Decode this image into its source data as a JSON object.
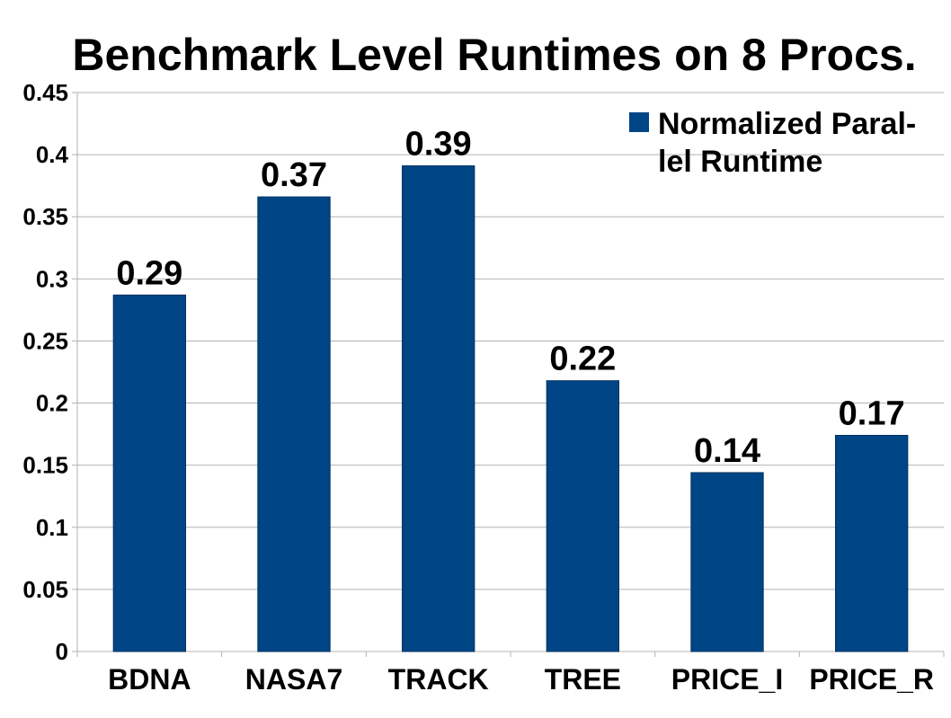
{
  "chart_data": {
    "type": "bar",
    "title": "Benchmark Level Runtimes on 8 Procs.",
    "xlabel": "",
    "ylabel": "",
    "categories": [
      "BDNA",
      "NASA7",
      "TRACK",
      "TREE",
      "PRICE_I",
      "PRICE_R"
    ],
    "series": [
      {
        "name": "Normalized Parallel Runtime",
        "values": [
          0.287,
          0.366,
          0.391,
          0.218,
          0.144,
          0.174
        ],
        "data_labels": [
          "0.29",
          "0.37",
          "0.39",
          "0.22",
          "0.14",
          "0.17"
        ],
        "color": "#004586"
      }
    ],
    "ylim": [
      0,
      0.45
    ],
    "yticks": [
      0,
      0.05,
      0.1,
      0.15,
      0.2,
      0.25,
      0.3,
      0.35,
      0.4,
      0.45
    ],
    "ytick_labels": [
      "0",
      "0.05",
      "0.1",
      "0.15",
      "0.2",
      "0.25",
      "0.3",
      "0.35",
      "0.4",
      "0.45"
    ],
    "grid": true,
    "legend": {
      "position": "top-right",
      "lines": [
        "Normalized Paral-",
        "lel Runtime"
      ]
    },
    "colors": {
      "bar": "#004586",
      "grid": "#b3b3b3",
      "text": "#000000"
    }
  }
}
